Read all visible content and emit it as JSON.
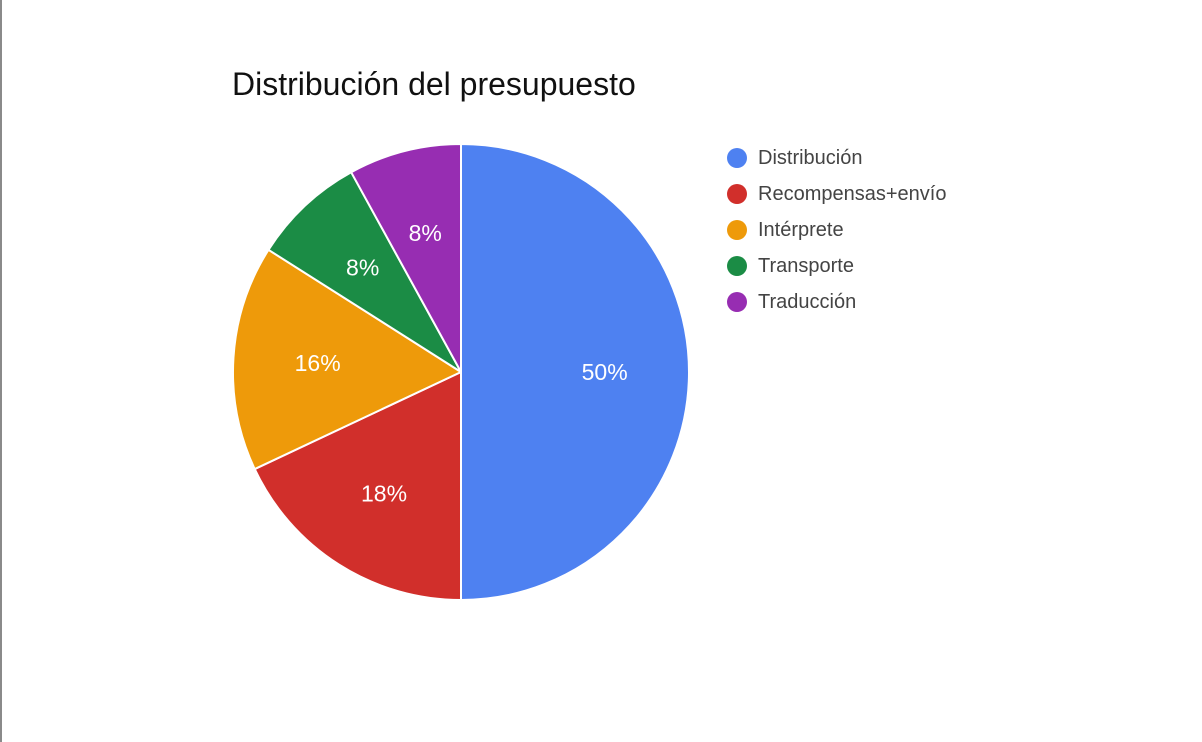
{
  "chart_data": {
    "type": "pie",
    "title": "Distribución del presupuesto",
    "categories": [
      "Distribución",
      "Recompensas+envío",
      "Intérprete",
      "Transporte",
      "Traducción"
    ],
    "values": [
      50,
      18,
      16,
      8,
      8
    ],
    "labels": [
      "50%",
      "18%",
      "16%",
      "8%",
      "8%"
    ],
    "colors": [
      "#4e81f1",
      "#d12f2b",
      "#ee9a0a",
      "#1b8c45",
      "#972db2"
    ],
    "legend_position": "right"
  }
}
